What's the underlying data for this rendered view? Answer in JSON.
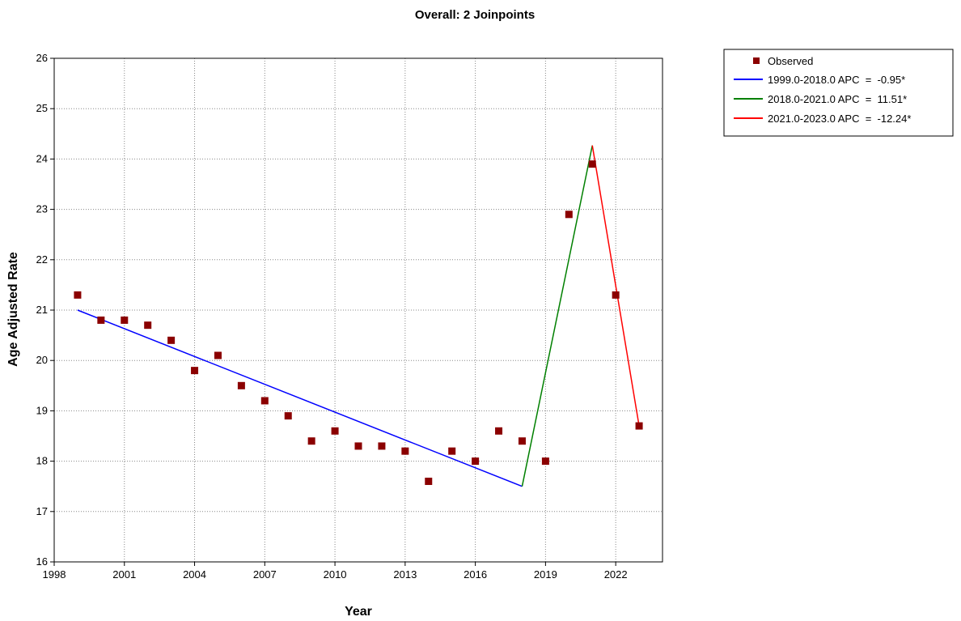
{
  "chart_data": {
    "type": "scatter",
    "title": "Overall: 2 Joinpoints",
    "xlabel": "Year",
    "ylabel": "Age Adjusted Rate",
    "xlim": [
      1998,
      2024
    ],
    "ylim": [
      16,
      26
    ],
    "xticks": [
      1998,
      2001,
      2004,
      2007,
      2010,
      2013,
      2016,
      2019,
      2022
    ],
    "yticks": [
      16,
      17,
      18,
      19,
      20,
      21,
      22,
      23,
      24,
      25,
      26
    ],
    "grid": true,
    "legend_position": "top-right",
    "observed": {
      "name": "Observed",
      "color": "#8b0000",
      "x": [
        1999,
        2000,
        2001,
        2002,
        2003,
        2004,
        2005,
        2006,
        2007,
        2008,
        2009,
        2010,
        2011,
        2012,
        2013,
        2014,
        2015,
        2016,
        2017,
        2018,
        2019,
        2020,
        2021,
        2022,
        2023
      ],
      "y": [
        21.3,
        20.8,
        20.8,
        20.7,
        20.4,
        19.8,
        20.1,
        19.5,
        19.2,
        18.9,
        18.4,
        18.6,
        18.3,
        18.3,
        18.2,
        17.6,
        18.2,
        18.0,
        18.6,
        18.4,
        18.0,
        22.9,
        23.9,
        21.3,
        18.7
      ]
    },
    "segments": [
      {
        "name": "1999.0-2018.0 APC  =  -0.95*",
        "color": "#0000ff",
        "x": [
          1999,
          2018
        ],
        "y": [
          21.0,
          17.5
        ]
      },
      {
        "name": "2018.0-2021.0 APC  =  11.51*",
        "color": "#008000",
        "x": [
          2018,
          2021
        ],
        "y": [
          17.5,
          24.27
        ]
      },
      {
        "name": "2021.0-2023.0 APC  =  -12.24*",
        "color": "#ff0000",
        "x": [
          2021,
          2023
        ],
        "y": [
          24.27,
          18.7
        ]
      }
    ]
  }
}
